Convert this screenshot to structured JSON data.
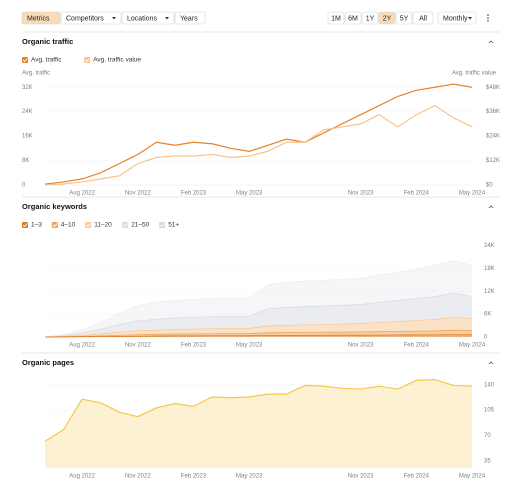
{
  "toolbar": {
    "tabs": [
      "Metrics",
      "Competitors",
      "Locations",
      "Years"
    ],
    "active_tab": 0,
    "ranges": [
      "1M",
      "6M",
      "1Y",
      "2Y",
      "5Y",
      "All"
    ],
    "active_range": 3,
    "interval": "Monthly"
  },
  "chart_data": [
    {
      "type": "line",
      "title": "Organic traffic",
      "categories": [
        null,
        null,
        "Aug 2022",
        null,
        null,
        "Nov 2022",
        null,
        null,
        "Feb 2023",
        null,
        null,
        "May 2023",
        null,
        null,
        null,
        null,
        null,
        "Nov 2023",
        null,
        null,
        "Feb 2024",
        null,
        null,
        "May 2024"
      ],
      "ylabel": "Avg. traffic",
      "y2label": "Avg. traffic value",
      "series": [
        {
          "name": "Avg. traffic",
          "color": "#e5832a",
          "values": [
            300,
            1000,
            2000,
            4000,
            7000,
            10000,
            14000,
            13000,
            14000,
            13500,
            12000,
            11000,
            13000,
            15000,
            14000,
            17000,
            20000,
            23000,
            26000,
            29000,
            31000,
            32000,
            33000,
            32000
          ]
        },
        {
          "name": "Avg. traffic value",
          "color": "#f6c48c",
          "axis": "y2",
          "values": [
            0,
            500,
            1500,
            3000,
            4500,
            10500,
            13500,
            14250,
            14250,
            15000,
            13500,
            14250,
            16500,
            21000,
            21000,
            27000,
            28500,
            30000,
            34500,
            28500,
            34500,
            39000,
            33000,
            28500
          ]
        }
      ],
      "ylim": [
        0,
        36000
      ],
      "yticks": [
        0,
        {
          "value": 8000,
          "label": "8K"
        },
        {
          "value": 16000,
          "label": "16K"
        },
        {
          "value": 24000,
          "label": "24K"
        },
        {
          "value": 32000,
          "label": "32K"
        }
      ],
      "y2lim": [
        0,
        54000
      ],
      "y2ticks": [
        {
          "value": 0,
          "label": "$0"
        },
        {
          "value": 12000,
          "label": "$12K"
        },
        {
          "value": 24000,
          "label": "$24K"
        },
        {
          "value": 36000,
          "label": "$36K"
        },
        {
          "value": 48000,
          "label": "$48K"
        }
      ],
      "grid": true
    },
    {
      "type": "area",
      "stacked": true,
      "title": "Organic keywords",
      "categories": [
        null,
        null,
        "Aug 2022",
        null,
        null,
        "Nov 2022",
        null,
        null,
        "Feb 2023",
        null,
        null,
        "May 2023",
        null,
        null,
        null,
        null,
        null,
        "Nov 2023",
        null,
        null,
        "Feb 2024",
        null,
        null,
        "May 2024"
      ],
      "series": [
        {
          "name": "1–3",
          "color": "#e07a1f",
          "checked": true,
          "values": [
            0,
            20,
            60,
            100,
            150,
            200,
            250,
            280,
            300,
            320,
            330,
            340,
            400,
            420,
            430,
            450,
            470,
            480,
            500,
            520,
            540,
            560,
            600,
            580
          ]
        },
        {
          "name": "4–10",
          "color": "#f0a45a",
          "checked": true,
          "values": [
            0,
            50,
            120,
            200,
            300,
            400,
            450,
            500,
            520,
            540,
            550,
            560,
            700,
            750,
            780,
            800,
            820,
            850,
            900,
            950,
            1000,
            1050,
            1200,
            1150
          ]
        },
        {
          "name": "11–20",
          "color": "#f8cb98",
          "checked": true,
          "values": [
            0,
            100,
            300,
            500,
            800,
            1000,
            1100,
            1200,
            1250,
            1300,
            1300,
            1350,
            1800,
            1900,
            1950,
            2000,
            2100,
            2200,
            2400,
            2600,
            2800,
            3000,
            3400,
            3100
          ]
        },
        {
          "name": "21–50",
          "color": "#d9dce1",
          "checked": false,
          "values": [
            0,
            200,
            600,
            1200,
            2000,
            2600,
            2900,
            3000,
            3100,
            3150,
            3200,
            3200,
            4500,
            4700,
            4800,
            4850,
            4900,
            5000,
            5300,
            5500,
            5800,
            6000,
            6300,
            5800
          ]
        },
        {
          "name": "51+",
          "color": "#eceef1",
          "checked": false,
          "values": [
            0,
            300,
            900,
            1800,
            3000,
            4000,
            4500,
            4600,
            4700,
            4750,
            4800,
            4800,
            6300,
            6500,
            6700,
            6800,
            6800,
            6900,
            7200,
            7400,
            7600,
            8300,
            8500,
            8200
          ]
        }
      ],
      "ylim": [
        0,
        26000
      ],
      "yticks": [
        0,
        {
          "value": 6000,
          "label": "6K"
        },
        {
          "value": 12000,
          "label": "12K"
        },
        {
          "value": 18000,
          "label": "18K"
        },
        {
          "value": 24000,
          "label": "24K"
        }
      ],
      "grid": true
    },
    {
      "type": "area",
      "title": "Organic pages",
      "categories": [
        null,
        null,
        "Aug 2022",
        null,
        null,
        "Nov 2022",
        null,
        null,
        "Feb 2023",
        null,
        null,
        "May 2023",
        null,
        null,
        null,
        null,
        null,
        "Nov 2023",
        null,
        null,
        "Feb 2024",
        null,
        null,
        "May 2024"
      ],
      "color": "#f3c94a",
      "values": [
        62,
        78,
        120,
        115,
        102,
        96,
        108,
        114,
        110,
        123,
        122,
        123,
        127,
        127,
        139,
        138,
        135,
        134,
        138,
        134,
        146,
        147,
        139,
        138
      ],
      "ylim": [
        25,
        152
      ],
      "yticks": [
        35,
        70,
        105,
        140
      ],
      "grid": true
    }
  ]
}
